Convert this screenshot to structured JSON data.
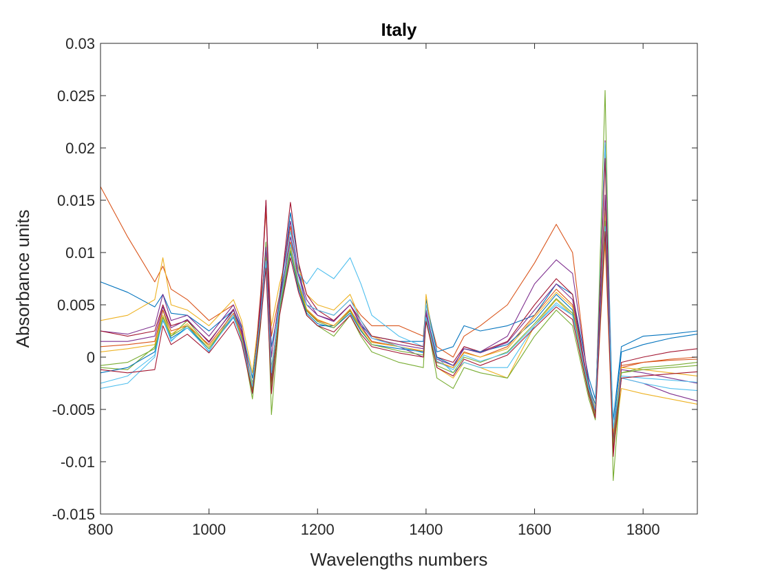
{
  "chart_data": {
    "type": "line",
    "title": "Italy",
    "xlabel": "Wavelengths numbers",
    "ylabel": "Absorbance units",
    "xlim": [
      800,
      1900
    ],
    "ylim": [
      -0.015,
      0.03
    ],
    "x_ticks": [
      800,
      1000,
      1200,
      1400,
      1600,
      1800
    ],
    "x_tick_labels": [
      "800",
      "1000",
      "1200",
      "1400",
      "1600",
      "1800"
    ],
    "y_ticks": [
      -0.015,
      -0.01,
      -0.005,
      0,
      0.005,
      0.01,
      0.015,
      0.02,
      0.025,
      0.03
    ],
    "y_tick_labels": [
      "-0.015",
      "-0.01",
      "-0.005",
      "0",
      "0.005",
      "0.01",
      "0.015",
      "0.02",
      "0.025",
      "0.03"
    ],
    "grid": false,
    "legend": "none",
    "x": [
      800,
      850,
      900,
      915,
      930,
      960,
      1000,
      1045,
      1060,
      1080,
      1095,
      1105,
      1115,
      1130,
      1150,
      1165,
      1180,
      1200,
      1230,
      1260,
      1280,
      1300,
      1350,
      1395,
      1400,
      1420,
      1450,
      1470,
      1500,
      1550,
      1600,
      1640,
      1670,
      1700,
      1712,
      1730,
      1745,
      1760,
      1800,
      1850,
      1900
    ],
    "series": [
      {
        "color": "#D95319",
        "values": [
          0.0163,
          0.0115,
          0.0072,
          0.0087,
          0.0065,
          0.0055,
          0.0035,
          0.005,
          0.003,
          -0.003,
          0.006,
          0.014,
          0.002,
          0.006,
          0.0125,
          0.007,
          0.005,
          0.0045,
          0.004,
          0.0055,
          0.004,
          0.003,
          0.003,
          0.002,
          0.005,
          0.001,
          0.0,
          0.002,
          0.003,
          0.005,
          0.009,
          0.0127,
          0.01,
          -0.003,
          -0.005,
          0.015,
          -0.008,
          -0.001,
          -0.0005,
          -0.0002,
          0.0
        ]
      },
      {
        "color": "#0072BD",
        "values": [
          0.0072,
          0.0062,
          0.0048,
          0.006,
          0.0042,
          0.004,
          0.0025,
          0.0045,
          0.0028,
          -0.002,
          0.004,
          0.011,
          0.001,
          0.005,
          0.0138,
          0.009,
          0.004,
          0.003,
          0.003,
          0.0045,
          0.003,
          0.002,
          0.0015,
          0.0015,
          0.0055,
          0.0005,
          0.001,
          0.003,
          0.0025,
          0.003,
          0.004,
          0.007,
          0.006,
          -0.002,
          -0.004,
          0.012,
          -0.006,
          0.001,
          0.002,
          0.0022,
          0.0025
        ]
      },
      {
        "color": "#EDB120",
        "values": [
          0.0035,
          0.004,
          0.0055,
          0.0095,
          0.005,
          0.0045,
          0.003,
          0.0055,
          0.0035,
          -0.0015,
          0.005,
          0.01,
          0.003,
          0.007,
          0.011,
          0.0085,
          0.006,
          0.005,
          0.0045,
          0.006,
          0.0035,
          0.002,
          0.001,
          0.0005,
          0.006,
          -0.001,
          -0.002,
          -0.0005,
          -0.001,
          -0.002,
          0.003,
          0.0055,
          0.004,
          -0.0035,
          -0.0055,
          0.011,
          -0.009,
          -0.003,
          -0.0035,
          -0.004,
          -0.0045
        ]
      },
      {
        "color": "#7E2F8E",
        "values": [
          0.0025,
          0.0022,
          0.003,
          0.006,
          0.0035,
          0.004,
          0.002,
          0.005,
          0.003,
          -0.0035,
          0.0055,
          0.015,
          0.0,
          0.006,
          0.013,
          0.008,
          0.0055,
          0.004,
          0.0035,
          0.005,
          0.003,
          0.0015,
          0.001,
          0.0,
          0.0045,
          -0.0005,
          -0.001,
          0.001,
          0.0005,
          0.002,
          0.007,
          0.0093,
          0.008,
          -0.0025,
          -0.005,
          0.0207,
          -0.0085,
          -0.002,
          -0.0025,
          -0.0035,
          -0.0042
        ]
      },
      {
        "color": "#77AC30",
        "values": [
          -0.001,
          -0.0012,
          0.001,
          0.0045,
          0.002,
          0.0035,
          0.001,
          0.004,
          0.002,
          -0.004,
          0.003,
          0.011,
          -0.0055,
          0.004,
          0.01,
          0.007,
          0.004,
          0.003,
          0.002,
          0.004,
          0.002,
          0.0005,
          -0.0005,
          -0.001,
          0.004,
          -0.002,
          -0.003,
          -0.001,
          -0.0015,
          -0.002,
          0.002,
          0.0045,
          0.003,
          -0.004,
          -0.006,
          0.0255,
          -0.0118,
          -0.0015,
          -0.001,
          -0.0008,
          -0.0005
        ]
      },
      {
        "color": "#4DBEEE",
        "values": [
          -0.003,
          -0.0025,
          0.0,
          0.004,
          0.0015,
          0.003,
          0.0005,
          0.0045,
          0.002,
          -0.003,
          0.0045,
          0.0095,
          -0.002,
          0.006,
          0.012,
          0.008,
          0.007,
          0.0085,
          0.0075,
          0.0095,
          0.007,
          0.004,
          0.002,
          0.001,
          0.005,
          0.0,
          -0.0015,
          -0.0005,
          -0.001,
          -0.001,
          0.003,
          0.005,
          0.004,
          -0.003,
          -0.005,
          0.0205,
          -0.007,
          -0.002,
          -0.0025,
          -0.003,
          -0.0032
        ]
      },
      {
        "color": "#A2142F",
        "values": [
          0.0025,
          0.002,
          0.0025,
          0.005,
          0.003,
          0.0035,
          0.0015,
          0.0045,
          0.0025,
          -0.003,
          0.005,
          0.015,
          -0.0025,
          0.0055,
          0.0148,
          0.009,
          0.006,
          0.0045,
          0.0035,
          0.005,
          0.0035,
          0.002,
          0.0015,
          0.001,
          0.004,
          0.0,
          -0.0005,
          0.001,
          0.0005,
          0.0015,
          0.005,
          0.0075,
          0.006,
          -0.003,
          -0.0055,
          0.019,
          -0.0095,
          -0.0005,
          0.0,
          0.0005,
          0.0008
        ]
      },
      {
        "color": "#D95319",
        "values": [
          0.001,
          0.0012,
          0.0015,
          0.0045,
          0.0025,
          0.003,
          0.0012,
          0.0042,
          0.0022,
          -0.0028,
          0.004,
          0.01,
          -0.0015,
          0.005,
          0.011,
          0.007,
          0.0045,
          0.0035,
          0.003,
          0.0045,
          0.0028,
          0.0015,
          0.001,
          0.0005,
          0.004,
          -0.0005,
          -0.001,
          0.0005,
          0.0,
          0.001,
          0.004,
          0.0065,
          0.005,
          -0.003,
          -0.005,
          0.0145,
          -0.0075,
          -0.0008,
          -0.0005,
          -0.0003,
          -0.0002
        ]
      },
      {
        "color": "#0072BD",
        "values": [
          -0.0015,
          -0.001,
          0.0005,
          0.0035,
          0.0018,
          0.0028,
          0.0008,
          0.0038,
          0.0018,
          -0.0025,
          0.0035,
          0.009,
          -0.001,
          0.0045,
          0.01,
          0.0065,
          0.0042,
          0.0032,
          0.0028,
          0.0042,
          0.0025,
          0.0012,
          0.0008,
          0.0005,
          0.0035,
          0.0,
          -0.0008,
          0.0008,
          0.0005,
          0.0012,
          0.0035,
          0.006,
          0.0045,
          -0.0028,
          -0.0045,
          0.0135,
          -0.007,
          0.0005,
          0.0012,
          0.0018,
          0.0022
        ]
      },
      {
        "color": "#EDB120",
        "values": [
          0.0005,
          0.0008,
          0.0012,
          0.004,
          0.0022,
          0.0032,
          0.001,
          0.004,
          0.002,
          -0.0026,
          0.0038,
          0.0098,
          -0.0012,
          0.0048,
          0.0105,
          0.0072,
          0.0046,
          0.0036,
          0.003,
          0.0046,
          0.0028,
          0.0014,
          0.001,
          0.0006,
          0.0038,
          -0.0004,
          -0.001,
          0.0004,
          0.0,
          0.0008,
          0.0038,
          0.0062,
          0.0048,
          -0.003,
          -0.0048,
          0.014,
          -0.0072,
          -0.001,
          -0.0012,
          -0.0015,
          -0.0018
        ]
      },
      {
        "color": "#7E2F8E",
        "values": [
          0.0015,
          0.0015,
          0.002,
          0.0048,
          0.0028,
          0.0036,
          0.0014,
          0.0046,
          0.0024,
          -0.003,
          0.0042,
          0.0105,
          -0.0018,
          0.0052,
          0.0115,
          0.0078,
          0.005,
          0.004,
          0.0034,
          0.005,
          0.0032,
          0.0018,
          0.0012,
          0.0008,
          0.0042,
          -0.0002,
          -0.0008,
          0.0008,
          0.0004,
          0.0014,
          0.0045,
          0.007,
          0.0055,
          -0.0032,
          -0.0052,
          0.0155,
          -0.008,
          -0.0012,
          -0.0015,
          -0.002,
          -0.0025
        ]
      },
      {
        "color": "#77AC30",
        "values": [
          -0.0008,
          -0.0005,
          0.0008,
          0.0038,
          0.002,
          0.003,
          0.0008,
          0.004,
          0.0018,
          -0.0032,
          0.0036,
          0.0095,
          -0.003,
          0.0046,
          0.0102,
          0.0068,
          0.0044,
          0.0034,
          0.0028,
          0.0044,
          0.0026,
          0.0012,
          0.0006,
          0.0002,
          0.0036,
          -0.0008,
          -0.0015,
          0.0,
          -0.0005,
          0.0005,
          0.0032,
          0.0056,
          0.0042,
          -0.0034,
          -0.0055,
          0.013,
          -0.0085,
          -0.0015,
          -0.0012,
          -0.001,
          -0.0008
        ]
      },
      {
        "color": "#4DBEEE",
        "values": [
          -0.0025,
          -0.0018,
          0.0002,
          0.0036,
          0.0016,
          0.0028,
          0.0006,
          0.004,
          0.0016,
          -0.0028,
          0.004,
          0.0092,
          -0.0015,
          0.005,
          0.0108,
          0.0072,
          0.005,
          0.0045,
          0.004,
          0.0055,
          0.0035,
          0.0018,
          0.001,
          0.0004,
          0.0038,
          -0.0004,
          -0.0012,
          0.0002,
          -0.0004,
          0.0004,
          0.003,
          0.0052,
          0.004,
          -0.003,
          -0.005,
          0.0125,
          -0.0068,
          -0.0018,
          -0.002,
          -0.0022,
          -0.0024
        ]
      },
      {
        "color": "#A2142F",
        "values": [
          -0.0012,
          -0.0015,
          -0.0012,
          0.003,
          0.0012,
          0.0022,
          0.0004,
          0.0034,
          0.0014,
          -0.0034,
          0.0032,
          0.0085,
          -0.0035,
          0.004,
          0.0095,
          0.0062,
          0.004,
          0.003,
          0.0024,
          0.004,
          0.0022,
          0.001,
          0.0004,
          0.0,
          0.0034,
          -0.001,
          -0.0018,
          -0.0002,
          -0.0008,
          0.0002,
          0.0028,
          0.0048,
          0.0036,
          -0.0036,
          -0.0058,
          0.012,
          -0.009,
          -0.002,
          -0.0018,
          -0.0016,
          -0.0014
        ]
      }
    ]
  }
}
